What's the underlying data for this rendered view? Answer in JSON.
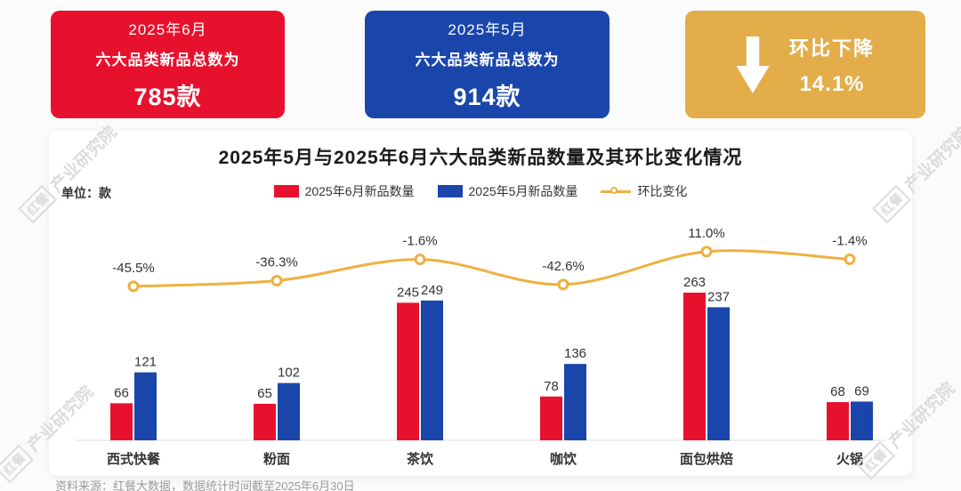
{
  "cards": {
    "june": {
      "line1": "2025年6月",
      "line2": "六大品类新品总数为",
      "value": "785款",
      "color": "#e8112d"
    },
    "may": {
      "line1": "2025年5月",
      "line2": "六大品类新品总数为",
      "value": "914款",
      "color": "#1a46ab"
    },
    "mom": {
      "label": "环比下降",
      "value": "14.1%",
      "color": "#e3ad4a",
      "arrow_icon": "down-arrow-icon"
    }
  },
  "chart": {
    "title": "2025年5月与2025年6月六大品类新品数量及其环比变化情况",
    "unit_label": "单位：款",
    "legend": [
      {
        "label": "2025年6月新品数量",
        "color": "#e8112d",
        "type": "bar"
      },
      {
        "label": "2025年5月新品数量",
        "color": "#1a46ab",
        "type": "bar"
      },
      {
        "label": "环比变化",
        "color": "#efb041",
        "type": "line"
      }
    ]
  },
  "chart_data": {
    "type": "bar",
    "subtype": "grouped-bars-with-line",
    "title": "2025年5月与2025年6月六大品类新品数量及其环比变化情况",
    "categories": [
      "西式快餐",
      "粉面",
      "茶饮",
      "咖饮",
      "面包烘焙",
      "火锅"
    ],
    "series": [
      {
        "name": "2025年6月新品数量",
        "type": "bar",
        "color": "#e8112d",
        "values": [
          66,
          65,
          245,
          78,
          263,
          68
        ]
      },
      {
        "name": "2025年5月新品数量",
        "type": "bar",
        "color": "#1a46ab",
        "values": [
          121,
          102,
          249,
          136,
          237,
          69
        ]
      },
      {
        "name": "环比变化",
        "type": "line",
        "color": "#efb041",
        "values_pct": [
          -45.5,
          -36.3,
          -1.6,
          -42.6,
          11.0,
          -1.4
        ],
        "labels": [
          "-45.5%",
          "-36.3%",
          "-1.6%",
          "-42.6%",
          "11.0%",
          "-1.4%"
        ]
      }
    ],
    "ylabel": "款",
    "bar_ylim": [
      0,
      300
    ],
    "line_ylim": [
      -60,
      25
    ],
    "grid": false,
    "legend_position": "top-center"
  },
  "watermark": {
    "brand": "红餐",
    "org": "产业研究院"
  },
  "footer": {
    "source": "资料来源：红餐大数据，数据统计时间截至2025年6月30日"
  }
}
